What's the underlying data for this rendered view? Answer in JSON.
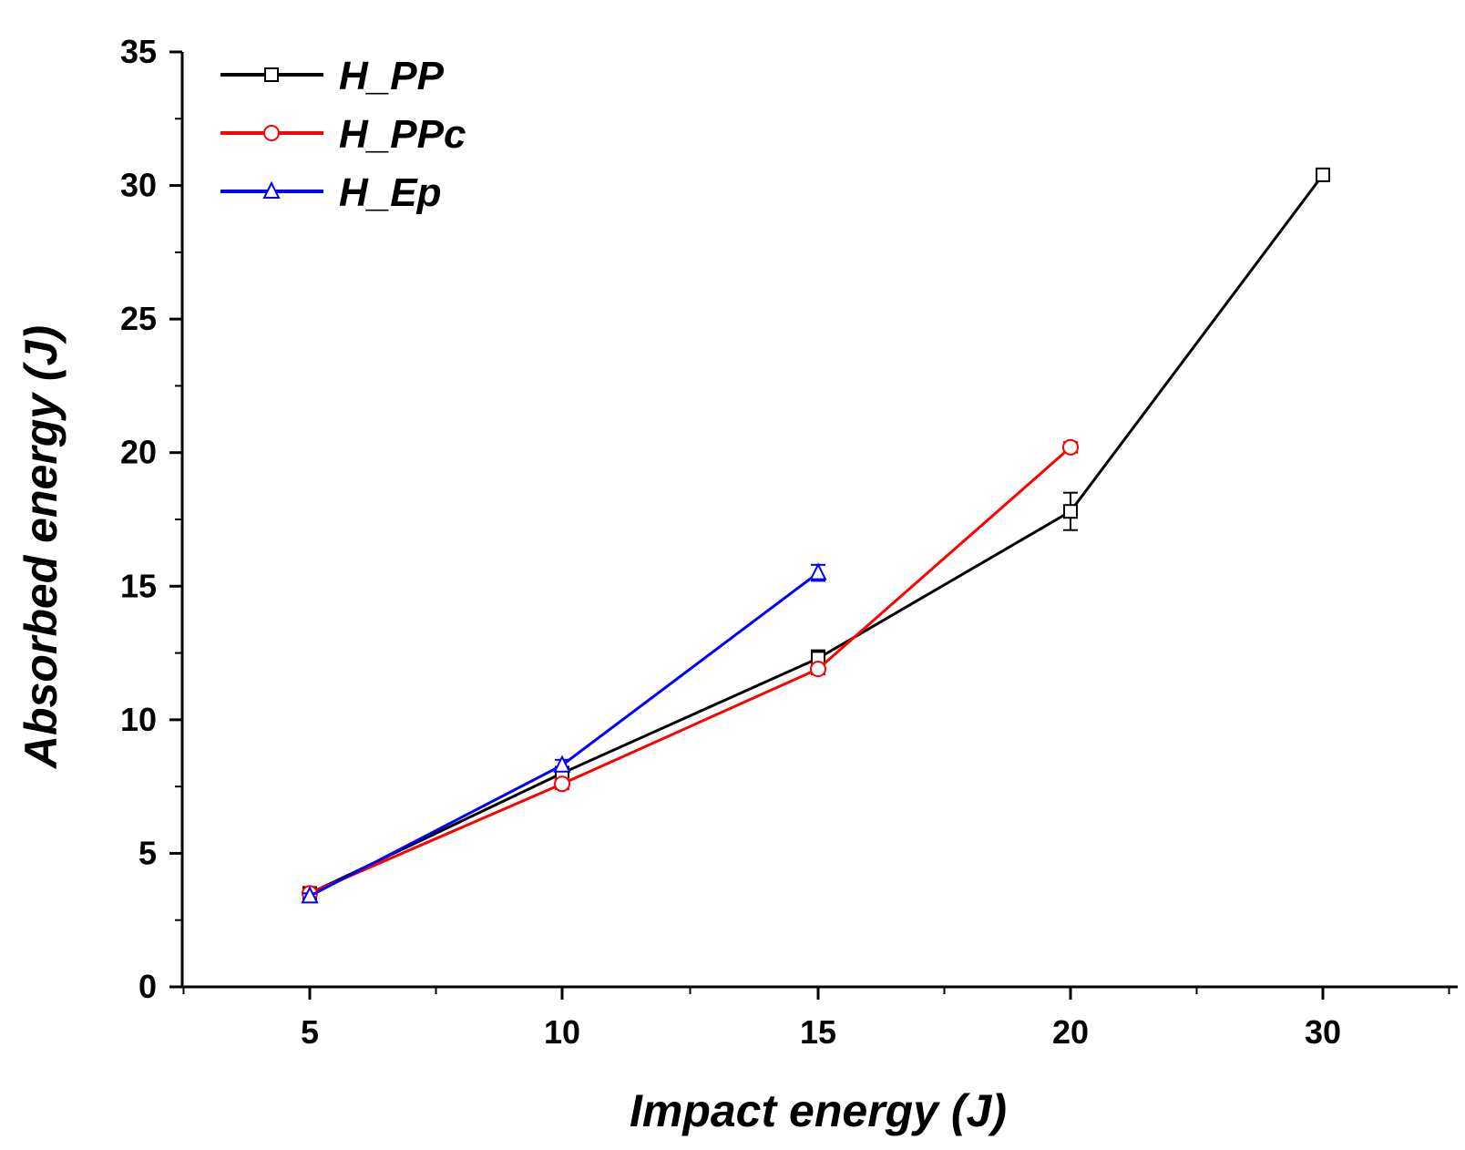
{
  "chart_data": {
    "type": "line",
    "xlabel": "Impact energy (J)",
    "ylabel": "Absorbed energy (J)",
    "categories": [
      "5",
      "10",
      "15",
      "20",
      "30"
    ],
    "ylim": [
      0,
      35
    ],
    "yticks": [
      0,
      5,
      10,
      15,
      20,
      25,
      30,
      35
    ],
    "legend_position": "top-left",
    "grid": false,
    "series": [
      {
        "name": "H_PP",
        "color": "#000000",
        "marker": "square",
        "values": [
          3.5,
          8.0,
          12.3,
          17.8,
          30.4
        ],
        "errors": [
          0.1,
          0.2,
          0.3,
          0.7,
          0.1
        ]
      },
      {
        "name": "H_PPc",
        "color": "#ff0000",
        "marker": "circle",
        "values": [
          3.5,
          7.6,
          11.9,
          20.2,
          null
        ],
        "errors": [
          0.1,
          0.2,
          0.2,
          0.2,
          null
        ]
      },
      {
        "name": "H_Ep",
        "color": "#0000ff",
        "marker": "triangle",
        "values": [
          3.4,
          8.3,
          15.5,
          null,
          null
        ],
        "errors": [
          0.1,
          0.2,
          0.3,
          null,
          null
        ]
      }
    ]
  }
}
